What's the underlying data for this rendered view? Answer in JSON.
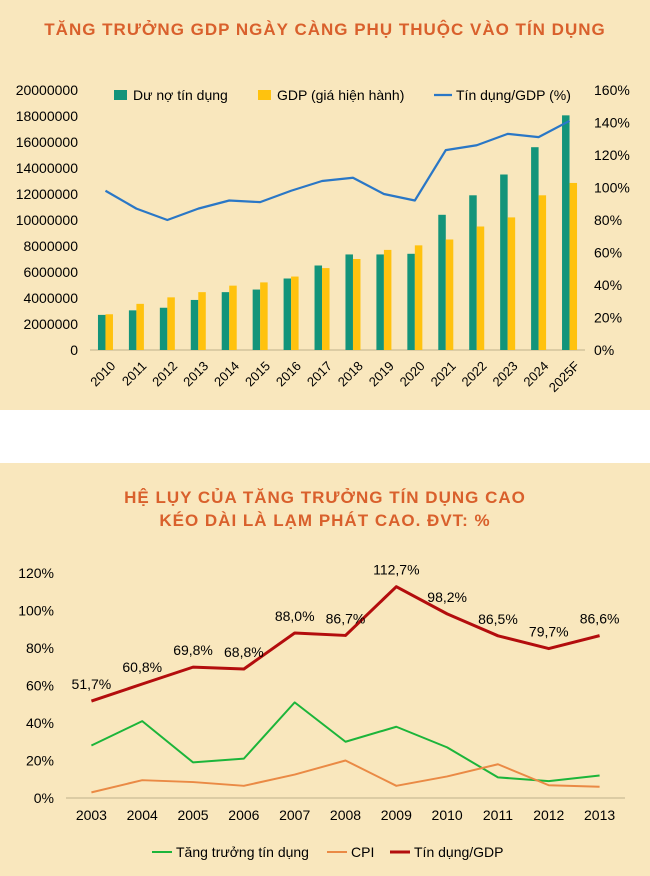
{
  "colors": {
    "panel_bg": "#f9e7bd",
    "title": "#d9602c",
    "credit_bar": "#13947a",
    "gdp_bar": "#ffc20e",
    "ratio_line_top": "#2a77c6",
    "credit_growth_line": "#1cb53a",
    "cpi_line": "#ea8a45",
    "ratio_line_bottom": "#b30d0d"
  },
  "chart_data": [
    {
      "type": "bar",
      "title": "TĂNG TRƯỞNG GDP NGÀY CÀNG PHỤ THUỘC VÀO TÍN DỤNG",
      "categories": [
        "2010",
        "2011",
        "2012",
        "2013",
        "2014",
        "2015",
        "2016",
        "2017",
        "2018",
        "2019",
        "2020",
        "2021",
        "2022",
        "2023",
        "2024",
        "2025F"
      ],
      "series": [
        {
          "name": "Dư nợ tín dụng",
          "type": "bar",
          "axis": "left",
          "values": [
            2700000,
            3050000,
            3250000,
            3850000,
            4450000,
            4650000,
            5500000,
            6500000,
            7350000,
            7350000,
            7400000,
            10400000,
            11900000,
            13500000,
            15600000,
            18050000
          ]
        },
        {
          "name": "GDP (giá hiện hành)",
          "type": "bar",
          "axis": "left",
          "values": [
            2750000,
            3550000,
            4050000,
            4450000,
            4950000,
            5200000,
            5650000,
            6300000,
            7000000,
            7700000,
            8050000,
            8500000,
            9500000,
            10200000,
            11900000,
            12850000
          ]
        },
        {
          "name": "Tín dụng/GDP (%)",
          "type": "line",
          "axis": "right",
          "values": [
            98,
            87,
            80,
            87,
            92,
            91,
            98,
            104,
            106,
            96,
            92,
            123,
            126,
            133,
            131,
            141
          ]
        }
      ],
      "y_left": {
        "min": 0,
        "max": 20000000,
        "ticks": [
          "0",
          "2000000",
          "4000000",
          "6000000",
          "8000000",
          "10000000",
          "12000000",
          "14000000",
          "16000000",
          "18000000",
          "20000000"
        ]
      },
      "y_right": {
        "min": 0,
        "max": 160,
        "ticks": [
          "0%",
          "20%",
          "40%",
          "60%",
          "80%",
          "100%",
          "120%",
          "140%",
          "160%"
        ]
      },
      "legend_position": "top",
      "grid": false
    },
    {
      "type": "line",
      "title_lines": [
        "HỆ LỤY CỦA TĂNG TRƯỞNG TÍN DỤNG CAO",
        "KÉO DÀI LÀ LẠM PHÁT CAO. ĐVT: %"
      ],
      "categories": [
        "2003",
        "2004",
        "2005",
        "2006",
        "2007",
        "2008",
        "2009",
        "2010",
        "2011",
        "2012",
        "2013"
      ],
      "series": [
        {
          "name": "Tăng trưởng tín dụng",
          "values": [
            28,
            41,
            19,
            21,
            51,
            30,
            38,
            27,
            11,
            9,
            12
          ]
        },
        {
          "name": "CPI",
          "values": [
            3,
            9.5,
            8.5,
            6.5,
            12.5,
            20,
            6.5,
            11.5,
            18,
            6.8,
            6
          ]
        },
        {
          "name": "Tín dụng/GDP",
          "values": [
            51.7,
            60.8,
            69.8,
            68.8,
            88.0,
            86.7,
            112.7,
            98.2,
            86.5,
            79.7,
            86.6
          ],
          "labels": [
            "51,7%",
            "60,8%",
            "69,8%",
            "68,8%",
            "88,0%",
            "86,7%",
            "112,7%",
            "98,2%",
            "86,5%",
            "79,7%",
            "86,6%"
          ]
        }
      ],
      "y": {
        "min": 0,
        "max": 120,
        "ticks": [
          "0%",
          "20%",
          "40%",
          "60%",
          "80%",
          "100%",
          "120%"
        ]
      },
      "legend_position": "bottom",
      "grid": false
    }
  ]
}
